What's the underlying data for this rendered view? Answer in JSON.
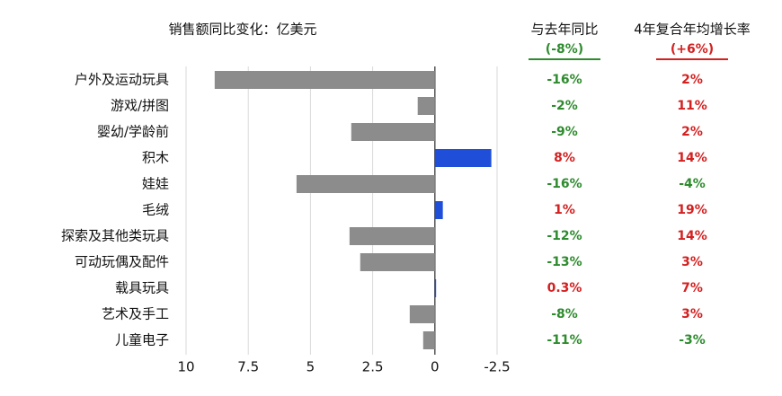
{
  "chart_data": {
    "type": "bar",
    "orientation": "horizontal",
    "title": "销售额同比变化：亿美元",
    "categories": [
      "户外及运动玩具",
      "游戏/拼图",
      "婴幼/学龄前",
      "积木",
      "娃娃",
      "毛绒",
      "探索及其他类玩具",
      "可动玩偶及配件",
      "载具玩具",
      "艺术及手工",
      "儿童电子"
    ],
    "values": [
      8.85,
      0.69,
      3.36,
      -2.27,
      5.56,
      -0.32,
      3.43,
      3.0,
      -0.05,
      1.01,
      0.47
    ],
    "colors": [
      "#8c8c8c",
      "#8c8c8c",
      "#8c8c8c",
      "#1f4fd8",
      "#8c8c8c",
      "#1f4fd8",
      "#8c8c8c",
      "#8c8c8c",
      "#1f4fd8",
      "#8c8c8c",
      "#8c8c8c"
    ],
    "xlim": [
      10,
      -2.5
    ],
    "xticks": [
      10,
      7.5,
      5,
      2.5,
      0,
      -2.5
    ],
    "grid": true,
    "columns": [
      {
        "title": "与去年同比",
        "subtitle": "(-8%)",
        "subtitle_color": "#2e8b2e",
        "labels": [
          "-16%",
          "-2%",
          "-9%",
          "8%",
          "-16%",
          "1%",
          "-12%",
          "-13%",
          "0.3%",
          "-8%",
          "-11%"
        ]
      },
      {
        "title": "4年复合年均增长率",
        "subtitle": "(+6%)",
        "subtitle_color": "#d42020",
        "labels": [
          "2%",
          "11%",
          "2%",
          "14%",
          "-4%",
          "19%",
          "14%",
          "3%",
          "7%",
          "3%",
          "-3%"
        ]
      }
    ],
    "positive_color": "#d42020",
    "negative_color": "#2e8b2e"
  }
}
